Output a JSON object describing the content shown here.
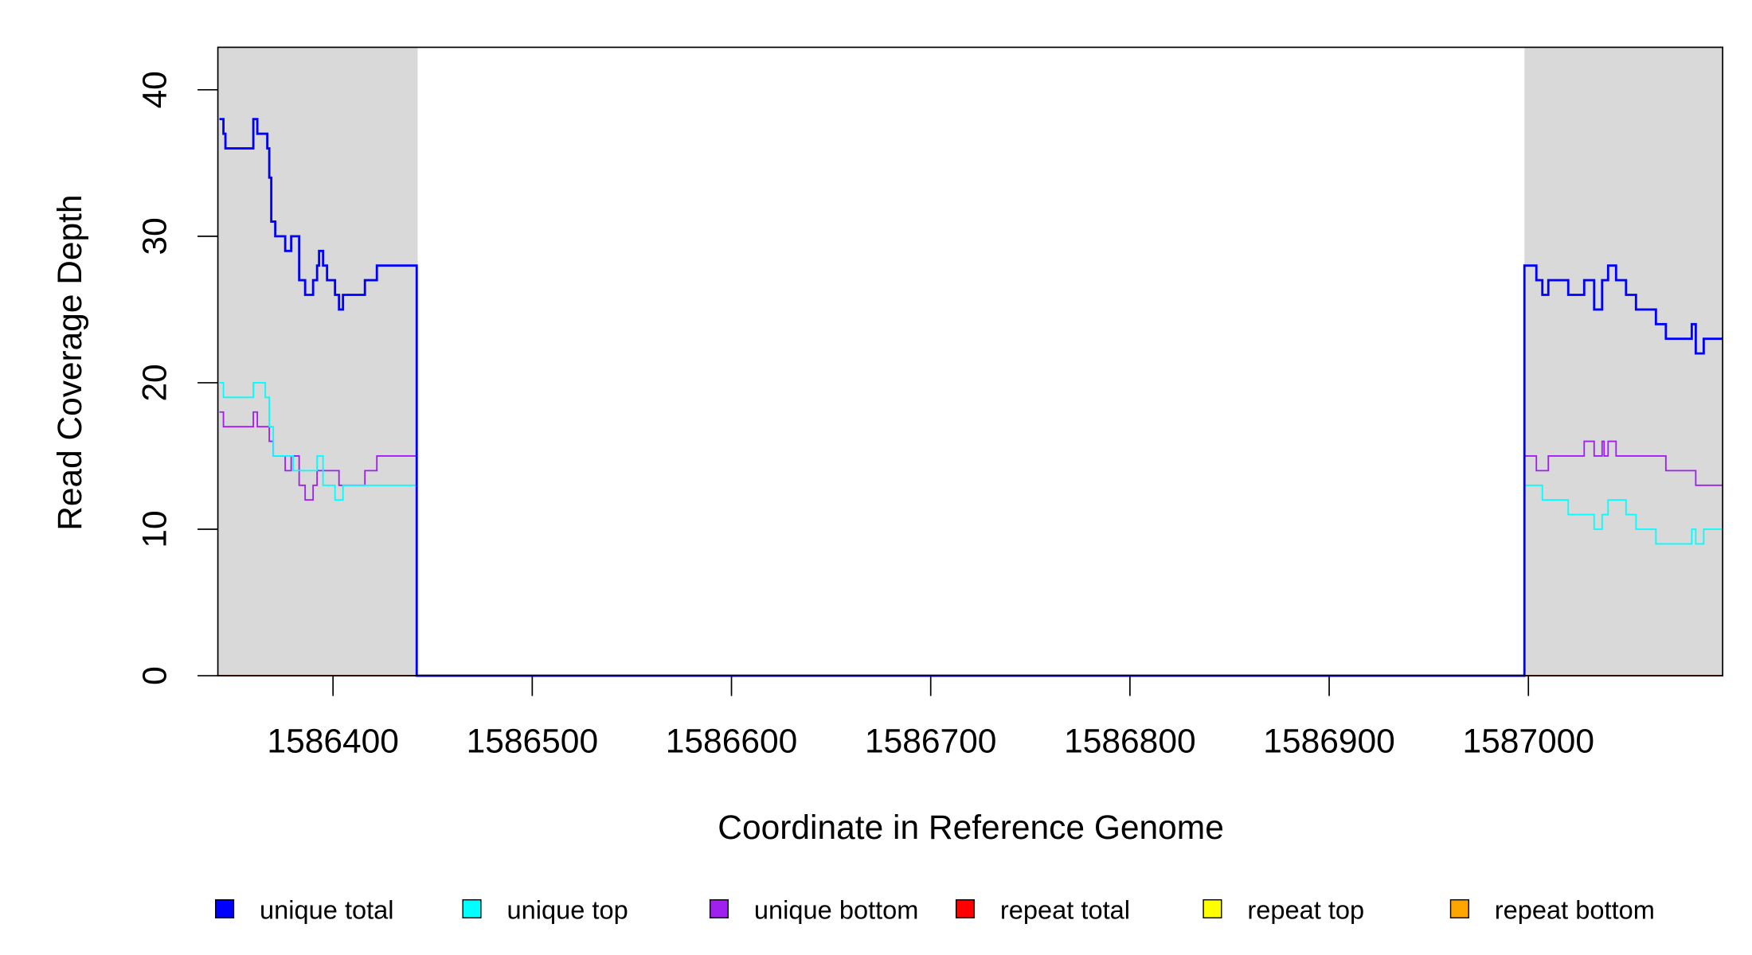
{
  "chart_data": {
    "type": "line",
    "step": true,
    "x_label": "Coordinate in Reference Genome",
    "y_label": "Read Coverage Depth",
    "xlim": [
      1586342.2,
      1587097.5
    ],
    "ylim": [
      0,
      42.9
    ],
    "xticks": [
      1586400,
      1586500,
      1586600,
      1586700,
      1586800,
      1586900,
      1587000
    ],
    "yticks": [
      0,
      10,
      20,
      30,
      40
    ],
    "shaded_regions": [
      [
        1586342.2,
        1586442.5
      ],
      [
        1586998,
        1587097.5
      ]
    ],
    "shade_color": "#d9d9d9",
    "series": [
      {
        "name": "unique total",
        "color": "#0000ff",
        "x": [
          1586343,
          1586345,
          1586346,
          1586360,
          1586362,
          1586367,
          1586368,
          1586369,
          1586371,
          1586376,
          1586379,
          1586383,
          1586386,
          1586390,
          1586392,
          1586393,
          1586395,
          1586397,
          1586401,
          1586403,
          1586405,
          1586416,
          1586422,
          1586442,
          1586998,
          1587004,
          1587007,
          1587010,
          1587020,
          1587028,
          1587033,
          1587037,
          1587040,
          1587044,
          1587049,
          1587054,
          1587064,
          1587069,
          1587082,
          1587084,
          1587088
        ],
        "values": [
          38,
          37,
          36,
          38,
          37,
          36,
          34,
          31,
          30,
          29,
          30,
          27,
          26,
          27,
          28,
          29,
          28,
          27,
          26,
          25,
          26,
          27,
          28,
          0,
          28,
          27,
          26,
          27,
          26,
          27,
          25,
          27,
          28,
          27,
          26,
          25,
          24,
          23,
          24,
          22,
          23
        ]
      },
      {
        "name": "unique top",
        "color": "#00ffff",
        "x": [
          1586343,
          1586345,
          1586360,
          1586366,
          1586368,
          1586370,
          1586380,
          1586392,
          1586395,
          1586401,
          1586405,
          1586442,
          1586998,
          1587007,
          1587020,
          1587033,
          1587037,
          1587040,
          1587049,
          1587054,
          1587064,
          1587082,
          1587084,
          1587088
        ],
        "values": [
          20,
          19,
          20,
          19,
          17,
          15,
          14,
          15,
          13,
          12,
          13,
          0,
          13,
          12,
          11,
          10,
          11,
          12,
          11,
          10,
          9,
          10,
          9,
          10
        ]
      },
      {
        "name": "unique bottom",
        "color": "#a020f0",
        "x": [
          1586343,
          1586345,
          1586360,
          1586362,
          1586368,
          1586370,
          1586376,
          1586379,
          1586383,
          1586386,
          1586390,
          1586392,
          1586403,
          1586416,
          1586422,
          1586442,
          1586998,
          1587004,
          1587010,
          1587028,
          1587033,
          1587037,
          1587038,
          1587040,
          1587044,
          1587069,
          1587084
        ],
        "values": [
          18,
          17,
          18,
          17,
          16,
          15,
          14,
          15,
          13,
          12,
          13,
          14,
          13,
          14,
          15,
          0,
          15,
          14,
          15,
          16,
          15,
          16,
          15,
          16,
          15,
          14,
          13
        ]
      },
      {
        "name": "repeat total",
        "color": "#ff0000",
        "x": [
          1586342.2
        ],
        "values": [
          0
        ]
      },
      {
        "name": "repeat top",
        "color": "#ffff00",
        "x": [
          1586342.2
        ],
        "values": [
          0
        ]
      },
      {
        "name": "repeat bottom",
        "color": "#ffa500",
        "x": [
          1586342.2
        ],
        "values": [
          0
        ]
      }
    ]
  }
}
